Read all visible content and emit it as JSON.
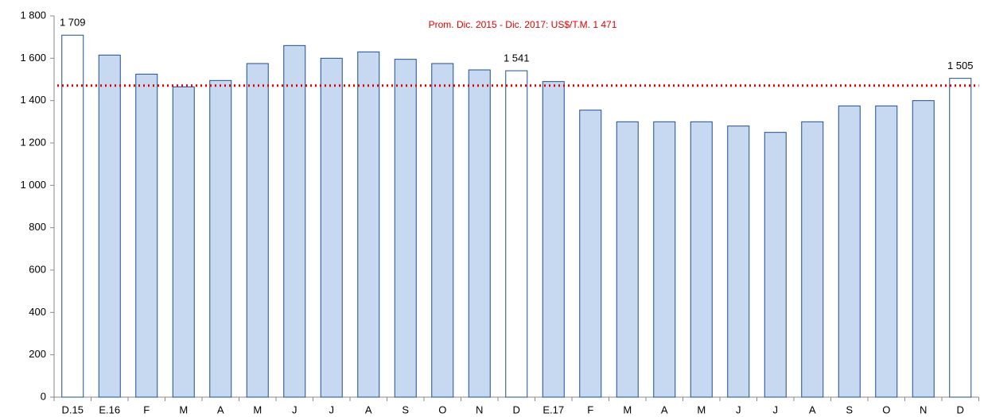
{
  "chart_data": {
    "type": "bar",
    "annotation": "Prom. Dic. 2015 - Dic. 2017: US$/T.M. 1 471",
    "categories": [
      "D.15",
      "E.16",
      "F",
      "M",
      "A",
      "M",
      "J",
      "J",
      "A",
      "S",
      "O",
      "N",
      "D",
      "E.17",
      "F",
      "M",
      "A",
      "M",
      "J",
      "J",
      "A",
      "S",
      "O",
      "N",
      "D"
    ],
    "values": [
      1709,
      1615,
      1525,
      1465,
      1495,
      1575,
      1660,
      1600,
      1630,
      1595,
      1575,
      1545,
      1541,
      1490,
      1355,
      1300,
      1300,
      1300,
      1280,
      1250,
      1300,
      1375,
      1375,
      1400,
      1505
    ],
    "value_labels": [
      "1 709",
      null,
      null,
      null,
      null,
      null,
      null,
      null,
      null,
      null,
      null,
      null,
      "1 541",
      null,
      null,
      null,
      null,
      null,
      null,
      null,
      null,
      null,
      null,
      null,
      "1 505"
    ],
    "colors": [
      "#ffffff",
      "#c6d9f1",
      "#c6d9f1",
      "#c6d9f1",
      "#c6d9f1",
      "#c6d9f1",
      "#c6d9f1",
      "#c6d9f1",
      "#c6d9f1",
      "#c6d9f1",
      "#c6d9f1",
      "#c6d9f1",
      "#ffffff",
      "#c6d9f1",
      "#c6d9f1",
      "#c6d9f1",
      "#c6d9f1",
      "#c6d9f1",
      "#c6d9f1",
      "#c6d9f1",
      "#c6d9f1",
      "#c6d9f1",
      "#c6d9f1",
      "#c6d9f1",
      "#ffffff"
    ],
    "edge_color": "#1f4e8c",
    "reference_line": {
      "value": 1471,
      "color": "#e00000"
    },
    "ylim": [
      0,
      1800
    ],
    "yticks": [
      0,
      200,
      400,
      600,
      800,
      {
        "value": 1000,
        "label": "1 000"
      },
      {
        "value": 1200,
        "label": "1 200"
      },
      {
        "value": 1400,
        "label": "1 400"
      },
      {
        "value": 1600,
        "label": "1 600"
      },
      {
        "value": 1800,
        "label": "1 800"
      }
    ]
  }
}
